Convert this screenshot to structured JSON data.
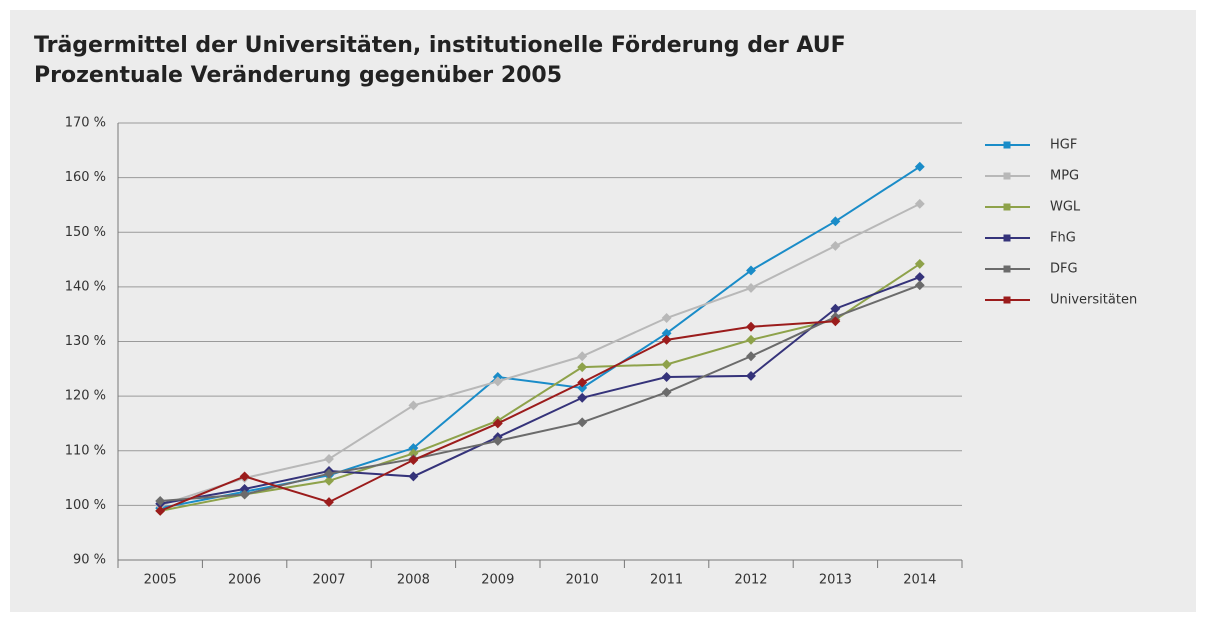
{
  "chart_data": {
    "type": "line",
    "title": "Trägermittel der Universitäten, institutionelle Förderung der AUF",
    "subtitle": "Prozentuale Veränderung gegenüber 2005",
    "categories": [
      "2005",
      "2006",
      "2007",
      "2008",
      "2009",
      "2010",
      "2011",
      "2012",
      "2013",
      "2014"
    ],
    "series": [
      {
        "name": "HGF",
        "color": "#1a8cc8",
        "values": [
          99.5,
          102.5,
          105.5,
          110.5,
          123.5,
          121.5,
          131.5,
          143,
          152,
          162
        ]
      },
      {
        "name": "MPG",
        "color": "#b8b8b8",
        "values": [
          100,
          105,
          108.5,
          118.3,
          122.7,
          127.3,
          134.3,
          139.8,
          147.5,
          155.2
        ]
      },
      {
        "name": "WGL",
        "color": "#8ea24a",
        "values": [
          99,
          102,
          104.5,
          109.5,
          115.5,
          125.3,
          125.8,
          130.3,
          134,
          144.2
        ]
      },
      {
        "name": "FhG",
        "color": "#35337a",
        "values": [
          100.3,
          103,
          106.3,
          105.3,
          112.5,
          119.7,
          123.5,
          123.7,
          136,
          141.8
        ]
      },
      {
        "name": "DFG",
        "color": "#6b6b6b",
        "values": [
          100.8,
          102,
          105.8,
          108.5,
          111.8,
          115.2,
          120.7,
          127.3,
          134.5,
          140.3
        ]
      },
      {
        "name": "Universitäten",
        "color": "#9b1c1c",
        "values": [
          99,
          105.3,
          100.6,
          108.3,
          115,
          122.5,
          130.3,
          132.7,
          133.7,
          null
        ]
      }
    ],
    "ylim": [
      90,
      170
    ],
    "yticks": [
      {
        "value": 90,
        "label": "90 %"
      },
      {
        "value": 100,
        "label": "100 %"
      },
      {
        "value": 110,
        "label": "110 %"
      },
      {
        "value": 120,
        "label": "120 %"
      },
      {
        "value": 130,
        "label": "130 %"
      },
      {
        "value": 140,
        "label": "140 %"
      },
      {
        "value": 150,
        "label": "150 %"
      },
      {
        "value": 160,
        "label": "160 %"
      },
      {
        "value": 170,
        "label": "170 %"
      }
    ],
    "grid": true,
    "legend": "right"
  }
}
